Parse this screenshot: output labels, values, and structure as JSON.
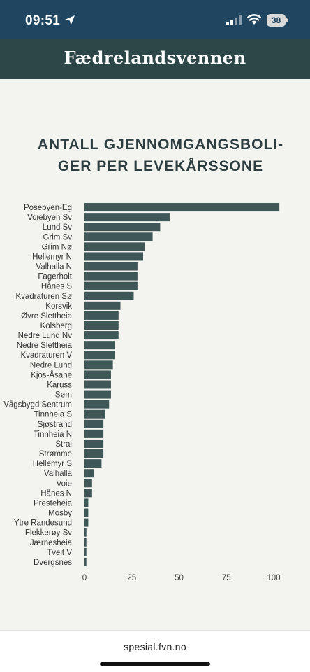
{
  "status_bar": {
    "time": "09:51",
    "battery": "38"
  },
  "header": {
    "logo_text": "Fædrelandsvennen"
  },
  "footer": {
    "url": "spesial.fvn.no"
  },
  "chart_data": {
    "type": "bar",
    "orientation": "horizontal",
    "title": "ANTALL GJENNOMGANGSBOLI-GER PER LEVEKÅRSSONE",
    "title_lines": [
      "ANTALL GJENNOMGANGSBOLI-",
      "GER PER LEVEKÅRSSONE"
    ],
    "xlim": [
      0,
      110
    ],
    "x_ticks": [
      0,
      25,
      50,
      75,
      100
    ],
    "grid": false,
    "bar_color": "#3f5757",
    "categories": [
      "Posebyen-Eg",
      "Voiebyen Sv",
      "Lund Sv",
      "Grim Sv",
      "Grim Nø",
      "Hellemyr N",
      "Valhalla N",
      "Fagerholt",
      "Hånes S",
      "Kvadraturen Sø",
      "Korsvik",
      "Øvre Slettheia",
      "Kolsberg",
      "Nedre Lund Nv",
      "Nedre Slettheia",
      "Kvadraturen V",
      "Nedre Lund",
      "Kjos-Åsane",
      "Karuss",
      "Søm",
      "Vågsbygd Sentrum",
      "Tinnheia S",
      "Sjøstrand",
      "Tinnheia N",
      "Strai",
      "Strømme",
      "Hellemyr S",
      "Valhalla",
      "Voie",
      "Hånes N",
      "Presteheia",
      "Mosby",
      "Ytre Randesund",
      "Flekkerøy Sv",
      "Jærnesheia",
      "Tveit V",
      "Dvergsnes"
    ],
    "values": [
      103,
      45,
      40,
      36,
      32,
      31,
      28,
      28,
      28,
      26,
      19,
      18,
      18,
      18,
      16,
      16,
      15,
      14,
      14,
      14,
      13,
      11,
      10,
      10,
      10,
      10,
      9,
      5,
      4,
      4,
      2,
      2,
      2,
      1,
      1,
      1,
      1
    ]
  }
}
